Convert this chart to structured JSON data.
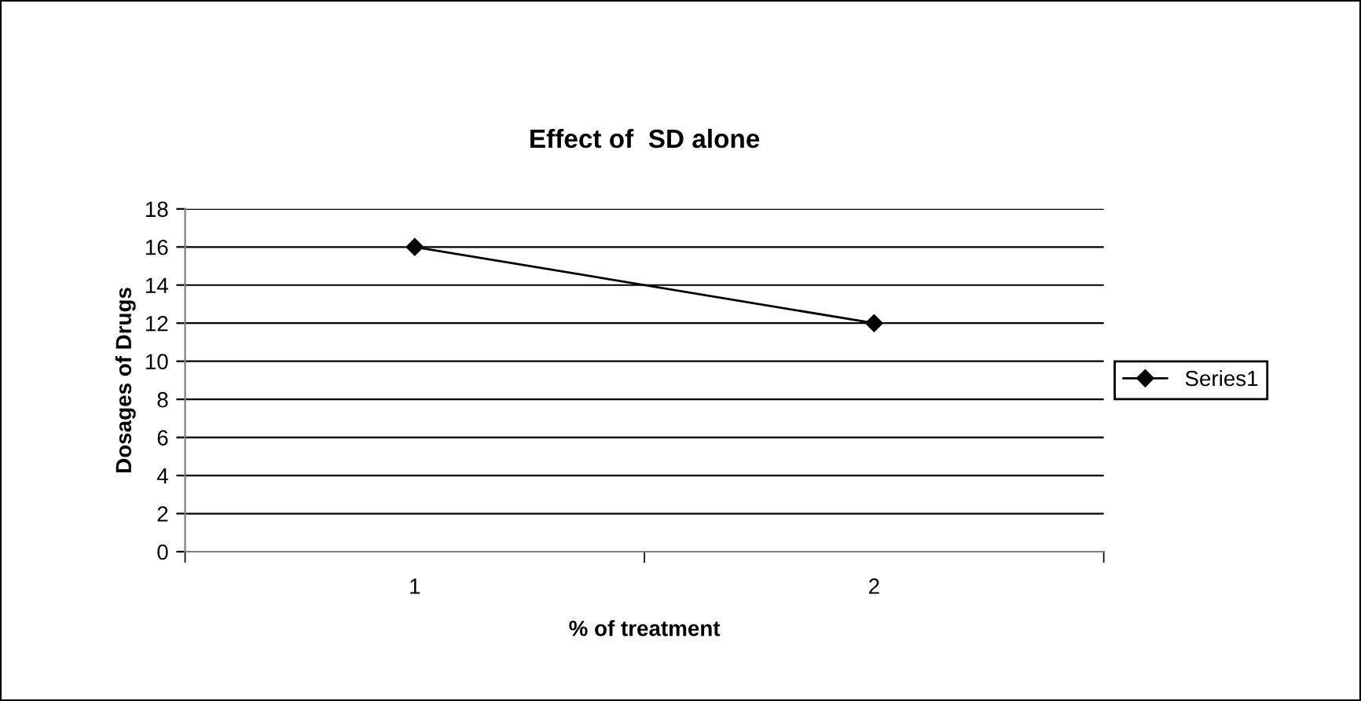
{
  "chart_data": {
    "type": "line",
    "title": "Effect of  SD alone",
    "xlabel": "% of treatment",
    "ylabel": "Dosages of Drugs",
    "categories": [
      "1",
      "2"
    ],
    "series": [
      {
        "name": "Series1",
        "color": "#000000",
        "values": [
          16,
          12
        ]
      }
    ],
    "ylim": [
      0,
      18
    ],
    "yticks": [
      0,
      2,
      4,
      6,
      8,
      10,
      12,
      14,
      16,
      18
    ],
    "grid": "y",
    "legend": "right",
    "marker": "diamond",
    "line_style": "solid"
  }
}
